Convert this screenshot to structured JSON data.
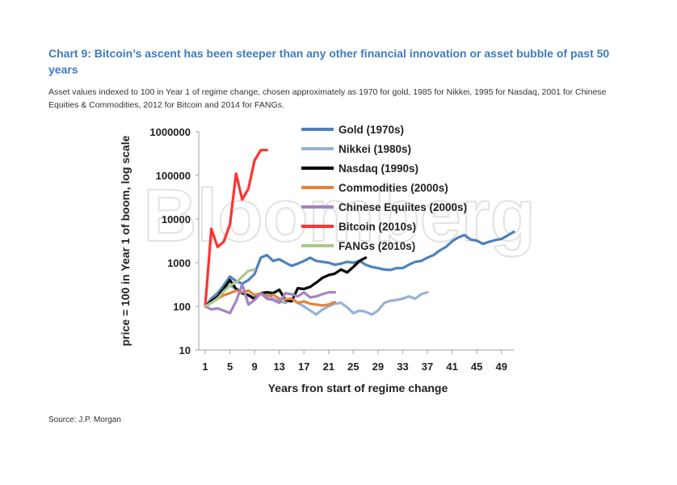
{
  "header": {
    "title": "Chart 9: Bitcoin’s ascent has been steeper than any other financial innovation or asset bubble of past 50 years",
    "subtitle": "Asset values indexed to 100 in Year 1 of regime change, chosen approximately as 1970 for gold, 1985 for Nikkei, 1995 for Nasdaq, 2001 for Chinese Equities & Commodities, 2012 for Bitcoin and 2014 for FANGs."
  },
  "watermark": "Bloomberg",
  "source": "Source: J.P. Morgan",
  "chart_data": {
    "type": "line",
    "title": "",
    "xlabel": "Years fron start of regime change",
    "ylabel": "price = 100 in Year 1 of boom, log scale",
    "yscale": "log",
    "ylim": [
      10,
      1000000
    ],
    "xlim": [
      1,
      51
    ],
    "xticks": [
      1,
      5,
      9,
      13,
      17,
      21,
      25,
      29,
      33,
      37,
      41,
      45,
      49
    ],
    "yticks": [
      10,
      100,
      1000,
      10000,
      100000,
      1000000
    ],
    "ytick_labels": [
      "10",
      "100",
      "1000",
      "10000",
      "100000",
      "1000000"
    ],
    "grid": false,
    "legend_position": "top-right",
    "series": [
      {
        "name": "Gold (1970s)",
        "color": "#4f81bd",
        "x": [
          1,
          2,
          3,
          4,
          5,
          6,
          7,
          8,
          9,
          10,
          11,
          12,
          13,
          14,
          15,
          16,
          17,
          18,
          19,
          20,
          21,
          22,
          23,
          24,
          25,
          26,
          27,
          28,
          29,
          30,
          31,
          32,
          33,
          34,
          35,
          36,
          37,
          38,
          39,
          40,
          41,
          42,
          43,
          44,
          45,
          46,
          47,
          48,
          49,
          50,
          51
        ],
        "values": [
          100,
          150,
          200,
          300,
          480,
          380,
          330,
          400,
          550,
          1300,
          1500,
          1100,
          1200,
          1000,
          850,
          950,
          1100,
          1300,
          1100,
          1050,
          1000,
          900,
          950,
          1050,
          1000,
          1100,
          900,
          800,
          750,
          700,
          680,
          750,
          750,
          900,
          1050,
          1100,
          1300,
          1500,
          1900,
          2300,
          3100,
          3800,
          4300,
          3400,
          3200,
          2700,
          3000,
          3300,
          3500,
          4200,
          5100
        ]
      },
      {
        "name": "Nikkei (1980s)",
        "color": "#95b3d7",
        "x": [
          1,
          2,
          3,
          4,
          5,
          6,
          7,
          8,
          9,
          10,
          11,
          12,
          13,
          14,
          15,
          16,
          17,
          18,
          19,
          20,
          21,
          22,
          23,
          24,
          25,
          26,
          27,
          28,
          29,
          30,
          31,
          32,
          33,
          34,
          35,
          36,
          37
        ],
        "values": [
          100,
          130,
          180,
          230,
          300,
          250,
          200,
          180,
          140,
          200,
          190,
          150,
          130,
          120,
          150,
          120,
          100,
          80,
          65,
          85,
          100,
          115,
          120,
          95,
          70,
          80,
          75,
          65,
          80,
          120,
          135,
          140,
          150,
          170,
          150,
          190,
          210
        ]
      },
      {
        "name": "Nasdaq (1990s)",
        "color": "#000000",
        "x": [
          1,
          2,
          3,
          4,
          5,
          6,
          7,
          8,
          9,
          10,
          11,
          12,
          13,
          14,
          15,
          16,
          17,
          18,
          19,
          20,
          21,
          22,
          23,
          24,
          25,
          26,
          27
        ],
        "values": [
          100,
          130,
          170,
          250,
          400,
          250,
          200,
          180,
          150,
          200,
          210,
          200,
          240,
          140,
          130,
          260,
          250,
          280,
          350,
          450,
          520,
          560,
          700,
          600,
          800,
          1100,
          1300
        ]
      },
      {
        "name": "Commodities (2000s)",
        "color": "#e5833a",
        "x": [
          1,
          2,
          3,
          4,
          5,
          6,
          7,
          8,
          9,
          10,
          11,
          12,
          13,
          14,
          15,
          16,
          17,
          18,
          19,
          20,
          21,
          22
        ],
        "values": [
          100,
          120,
          150,
          180,
          200,
          230,
          210,
          230,
          180,
          200,
          170,
          185,
          150,
          145,
          150,
          120,
          130,
          115,
          110,
          105,
          110,
          125
        ]
      },
      {
        "name": "Chinese Equiites (2000s)",
        "color": "#a483c4",
        "x": [
          1,
          2,
          3,
          4,
          5,
          6,
          7,
          8,
          9,
          10,
          11,
          12,
          13,
          14,
          15,
          16,
          17,
          18,
          19,
          20,
          21,
          22
        ],
        "values": [
          100,
          85,
          90,
          80,
          70,
          130,
          320,
          110,
          140,
          200,
          150,
          140,
          120,
          200,
          190,
          170,
          210,
          160,
          170,
          190,
          210,
          210
        ]
      },
      {
        "name": "Bitcoin (2010s)",
        "color": "#ff3333",
        "x": [
          1,
          2,
          3,
          4,
          5,
          6,
          7,
          8,
          9,
          10,
          11
        ],
        "values": [
          100,
          6000,
          2300,
          3000,
          7500,
          110000,
          28000,
          50000,
          220000,
          380000,
          380000
        ]
      },
      {
        "name": "FANGs (2010s)",
        "color": "#a9c98a",
        "x": [
          1,
          2,
          3,
          4,
          5,
          6,
          7,
          8,
          9
        ],
        "values": [
          100,
          120,
          150,
          220,
          300,
          350,
          480,
          650,
          700
        ]
      }
    ]
  }
}
